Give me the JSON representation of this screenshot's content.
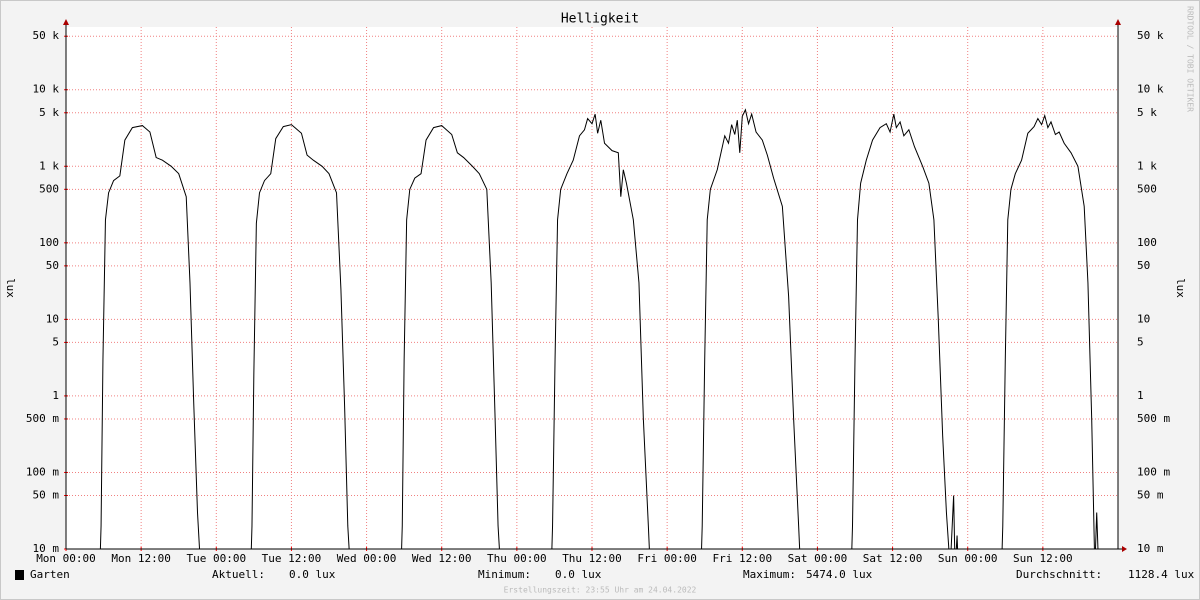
{
  "chart_data": {
    "type": "line",
    "title": "Helligkeit",
    "y_label": "lux",
    "watermark": "RRDTOOL / TOBI OETIKER",
    "log_scale": true,
    "grid": true,
    "xlim": [
      0,
      168
    ],
    "ylim": [
      0.01,
      66000
    ],
    "xticks": [
      {
        "value": 0,
        "label": "Mon 00:00"
      },
      {
        "value": 12,
        "label": "Mon 12:00"
      },
      {
        "value": 24,
        "label": "Tue 00:00"
      },
      {
        "value": 36,
        "label": "Tue 12:00"
      },
      {
        "value": 48,
        "label": "Wed 00:00"
      },
      {
        "value": 60,
        "label": "Wed 12:00"
      },
      {
        "value": 72,
        "label": "Thu 00:00"
      },
      {
        "value": 84,
        "label": "Thu 12:00"
      },
      {
        "value": 96,
        "label": "Fri 00:00"
      },
      {
        "value": 108,
        "label": "Fri 12:00"
      },
      {
        "value": 120,
        "label": "Sat 00:00"
      },
      {
        "value": 132,
        "label": "Sat 12:00"
      },
      {
        "value": 144,
        "label": "Sun 00:00"
      },
      {
        "value": 156,
        "label": "Sun 12:00"
      }
    ],
    "yticks": [
      {
        "value": 0.01,
        "label": "10 m"
      },
      {
        "value": 0.05,
        "label": "50 m"
      },
      {
        "value": 0.1,
        "label": "100 m"
      },
      {
        "value": 0.5,
        "label": "500 m"
      },
      1,
      5,
      10,
      50,
      100,
      500,
      {
        "value": 1000,
        "label": "1 k"
      },
      {
        "value": 5000,
        "label": "5 k"
      },
      {
        "value": 10000,
        "label": "10 k"
      },
      {
        "value": 50000,
        "label": "50 k"
      }
    ],
    "x": [
      0,
      5.4,
      5.6,
      5.9,
      6.3,
      6.8,
      7.6,
      8.6,
      9.4,
      10.6,
      12.2,
      13.4,
      14.4,
      15.4,
      16.8,
      18.0,
      19.2,
      19.8,
      20.4,
      21.0,
      21.5,
      29.5,
      29.7,
      30.0,
      30.4,
      30.9,
      31.7,
      32.7,
      33.5,
      34.7,
      36.0,
      37.6,
      38.5,
      39.5,
      40.9,
      42.0,
      43.2,
      43.9,
      44.5,
      45.0,
      45.4,
      53.5,
      53.7,
      54.0,
      54.4,
      54.9,
      55.7,
      56.7,
      57.5,
      58.7,
      60.0,
      61.6,
      62.5,
      63.5,
      64.9,
      66.0,
      67.2,
      67.9,
      68.5,
      69.0,
      69.4,
      77.5,
      77.7,
      78.1,
      78.5,
      79.0,
      80.0,
      81.0,
      82.0,
      82.8,
      83.3,
      84.0,
      84.5,
      84.9,
      85.4,
      86.0,
      87.2,
      88.2,
      88.6,
      89.0,
      89.5,
      90.6,
      91.5,
      92.2,
      93.0,
      93.3,
      101.4,
      101.6,
      102.0,
      102.4,
      102.9,
      104.0,
      105.2,
      105.8,
      106.3,
      106.8,
      107.2,
      107.6,
      108.0,
      108.5,
      109.0,
      109.5,
      110.2,
      111.2,
      112.0,
      113.0,
      114.4,
      115.4,
      116.2,
      117.0,
      117.3,
      125.4,
      125.6,
      126.0,
      126.4,
      126.9,
      127.8,
      128.8,
      130.0,
      131.0,
      131.6,
      132.2,
      132.6,
      133.2,
      133.8,
      134.6,
      135.5,
      136.8,
      137.8,
      138.6,
      139.3,
      140.0,
      140.6,
      141.2,
      141.75,
      141.9,
      142.0,
      142.3,
      142.5,
      149.4,
      149.6,
      150.0,
      150.4,
      150.9,
      151.6,
      152.6,
      153.6,
      154.6,
      155.2,
      155.8,
      156.3,
      156.8,
      157.3,
      158.0,
      158.6,
      159.4,
      160.5,
      161.6,
      162.6,
      163.2,
      163.8,
      164.3,
      164.6,
      164.8,
      165.0,
      168
    ],
    "series": [
      {
        "name": "Garten",
        "color": "#000000",
        "values": [
          0,
          0,
          0.02,
          3,
          200,
          450,
          650,
          750,
          2200,
          3200,
          3400,
          2800,
          1300,
          1200,
          1000,
          800,
          400,
          30,
          0.8,
          0.03,
          0,
          0,
          0.02,
          2,
          180,
          450,
          650,
          800,
          2300,
          3300,
          3500,
          2700,
          1400,
          1200,
          1000,
          800,
          450,
          25,
          0.7,
          0.02,
          0,
          0,
          0.02,
          3,
          200,
          500,
          700,
          800,
          2200,
          3200,
          3400,
          2600,
          1500,
          1300,
          1000,
          800,
          500,
          30,
          0.6,
          0.02,
          0,
          0,
          0.02,
          3,
          200,
          500,
          800,
          1200,
          2500,
          3000,
          4200,
          3600,
          4800,
          2700,
          4000,
          2000,
          1600,
          1500,
          400,
          900,
          600,
          200,
          30,
          0.5,
          0.02,
          0,
          0,
          0.02,
          3,
          200,
          500,
          900,
          2500,
          2000,
          3500,
          2600,
          4000,
          1500,
          4500,
          5474,
          3600,
          4800,
          2800,
          2200,
          1400,
          700,
          300,
          20,
          0.5,
          0.02,
          0,
          0,
          0.02,
          3,
          200,
          600,
          1200,
          2200,
          3200,
          3600,
          2800,
          4800,
          3200,
          3800,
          2500,
          3000,
          1800,
          1000,
          600,
          200,
          10,
          0.3,
          0.03,
          0,
          0.05,
          0.012,
          0,
          0.015,
          0,
          0,
          0.02,
          3,
          200,
          500,
          800,
          1200,
          2700,
          3300,
          4200,
          3500,
          4600,
          3200,
          3800,
          2600,
          2800,
          2000,
          1500,
          1000,
          300,
          30,
          0.5,
          0,
          0.03,
          0.01,
          0,
          0
        ]
      }
    ],
    "stats": [
      {
        "label": "Aktuell:",
        "value": "0.0 lux"
      },
      {
        "label": "Minimum:",
        "value": "0.0 lux"
      },
      {
        "label": "Maximum:",
        "value": "5474.0 lux"
      },
      {
        "label": "Durchschnitt:",
        "value": "1128.4 lux"
      }
    ],
    "footer": "Erstellungszeit: 23:55 Uhr am 24.04.2022"
  }
}
